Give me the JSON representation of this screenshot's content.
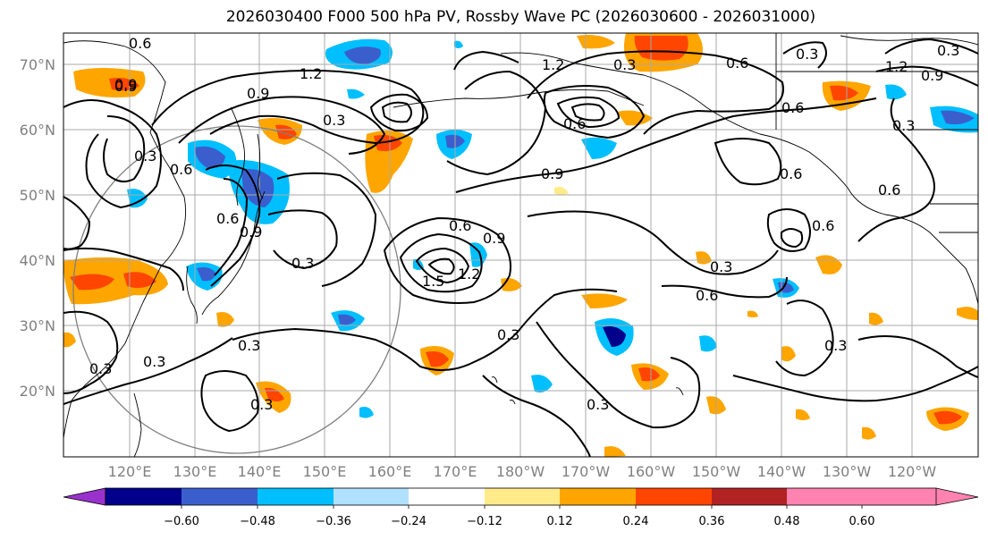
{
  "title": "2026030400 F000 500 hPa PV, Rossby Wave PC (2026030600 - 2026031000)",
  "map": {
    "lat_ticks": [
      "70°N",
      "60°N",
      "50°N",
      "40°N",
      "30°N",
      "20°N"
    ],
    "lon_ticks": [
      "120°E",
      "130°E",
      "140°E",
      "150°E",
      "160°E",
      "170°E",
      "180°W",
      "170°W",
      "160°W",
      "150°W",
      "140°W",
      "130°W",
      "120°W"
    ],
    "contour_labels": [
      {
        "name": "label-0.6-nw",
        "text": "0.6"
      },
      {
        "name": "label-1.2-n",
        "text": "1.2"
      },
      {
        "name": "label-0.9-w",
        "text": "0.9"
      },
      {
        "name": "label-0.9-nw",
        "text": "0.9"
      },
      {
        "name": "label-0.3-center",
        "text": "0.3"
      },
      {
        "name": "label-0.6-west",
        "text": "0.6"
      },
      {
        "name": "label-0.6-japan",
        "text": "0.6"
      },
      {
        "name": "label-0.9-japan",
        "text": "0.9"
      },
      {
        "name": "label-0.3-japan",
        "text": "0.3"
      },
      {
        "name": "label-0.6-midpac",
        "text": "0.6"
      },
      {
        "name": "label-0.9-midpac",
        "text": "0.9"
      },
      {
        "name": "label-1.5-midpac",
        "text": "1.5"
      },
      {
        "name": "label-1.2-midpac",
        "text": "1.2"
      },
      {
        "name": "label-0.9-gulf",
        "text": "0.9"
      },
      {
        "name": "label-1.2-bering",
        "text": "1.2"
      },
      {
        "name": "label-1.2-ne",
        "text": "1.2"
      },
      {
        "name": "label-0.3-ne",
        "text": "0.3"
      },
      {
        "name": "label-0.6-alaska",
        "text": "0.6"
      },
      {
        "name": "label-0.3-bering",
        "text": "0.3"
      },
      {
        "name": "label-0.6-canada",
        "text": "0.6"
      },
      {
        "name": "label-0.3-canada",
        "text": "0.3"
      },
      {
        "name": "label-0.6-east",
        "text": "0.6"
      },
      {
        "name": "label-0.6-bc",
        "text": "0.6"
      },
      {
        "name": "label-0.6-nepac",
        "text": "0.6"
      },
      {
        "name": "label-0.6-mid",
        "text": "0.6"
      },
      {
        "name": "label-0.3-mid",
        "text": "0.3"
      },
      {
        "name": "label-0.3-south",
        "text": "0.3"
      },
      {
        "name": "label-0.3-sw",
        "text": "0.3"
      },
      {
        "name": "label-0.3-swfar",
        "text": "0.3"
      },
      {
        "name": "label-0.3-east",
        "text": "0.3"
      },
      {
        "name": "label-0.3-sw2",
        "text": "0.3"
      },
      {
        "name": "label-0.3-south2",
        "text": "0.3"
      },
      {
        "name": "label-0.3-hawaii",
        "text": "0.3"
      },
      {
        "name": "label-0.9-ne",
        "text": "0.9"
      },
      {
        "name": "label-0.3-tr",
        "text": "0.3"
      },
      {
        "name": "label-0.9-asia",
        "text": "0.9"
      },
      {
        "name": "label-0.6-asia",
        "text": "0.6"
      },
      {
        "name": "label-0.3-asia",
        "text": "0.3"
      }
    ]
  },
  "colorbar": {
    "tick_labels": [
      "−0.60",
      "−0.48",
      "−0.36",
      "−0.24",
      "−0.12",
      "0.12",
      "0.24",
      "0.36",
      "0.48",
      "0.60"
    ],
    "colors": [
      "#9932cc",
      "#00008b",
      "#3a5fcd",
      "#00bfff",
      "#b0e2ff",
      "#ffffff",
      "#ffeb8a",
      "#ffa500",
      "#ff4500",
      "#b22222",
      "#ff83b0"
    ]
  }
}
